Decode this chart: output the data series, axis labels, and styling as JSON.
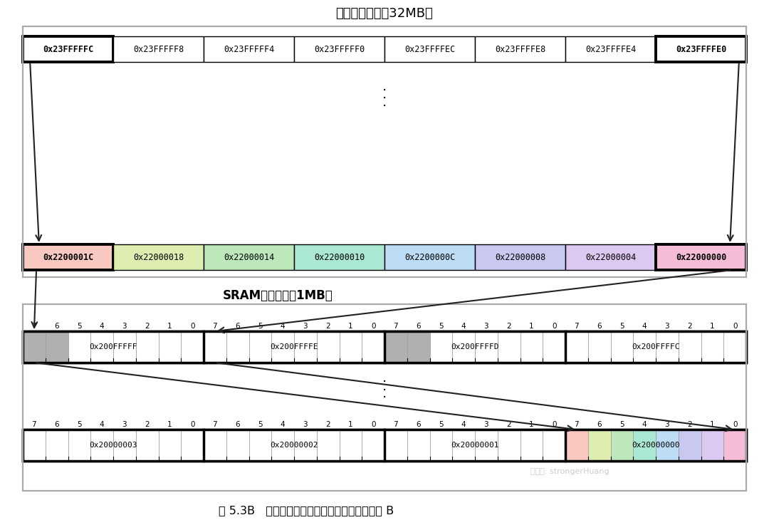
{
  "title_top": "位带别名区（共32MB）",
  "title_mid": "SRAM位带区（共1MB）",
  "caption": "图 5.3B   位带区与位带别名区的膨胀对应关系图 B",
  "watermark": "微信号: strongerHuang",
  "alias_row1_labels": [
    "0x23FFFFFC",
    "0x23FFFFF8",
    "0x23FFFFF4",
    "0x23FFFFF0",
    "0x23FFFFEC",
    "0x23FFFFE8",
    "0x23FFFFE4",
    "0x23FFFFE0"
  ],
  "alias_row2_labels": [
    "0x2200001C",
    "0x22000018",
    "0x22000014",
    "0x22000010",
    "0x2200000C",
    "0x22000008",
    "0x22000004",
    "0x22000000"
  ],
  "alias_row2_colors": [
    "#f9c8c0",
    "#deedb0",
    "#bce8bc",
    "#abe8d4",
    "#bcddf5",
    "#c8c8f0",
    "#dcc8f0",
    "#f5bcd8"
  ],
  "alias_row1_bold": [
    true,
    false,
    false,
    false,
    false,
    false,
    false,
    true
  ],
  "alias_row2_bold": [
    true,
    false,
    false,
    false,
    false,
    false,
    false,
    true
  ],
  "sram_top_bytes": [
    "0x200FFFFF",
    "0x200FFFFE",
    "0x200FFFFD",
    "0x200FFFFC"
  ],
  "sram_bot_bytes": [
    "0x20000003",
    "0x20000002",
    "0x20000001",
    "0x20000000"
  ],
  "sram_bot_colors": [
    "#f9c8c0",
    "#deedb0",
    "#bce8bc",
    "#abe8d4",
    "#bcddf5",
    "#c8c8f0",
    "#dcc8f0",
    "#f5bcd8"
  ],
  "bg_color": "#ffffff",
  "arrow_color": "#222222",
  "gray_color": "#b0b0b0",
  "alias_outer_lw": 1.5,
  "sram_outer_lw": 1.5
}
